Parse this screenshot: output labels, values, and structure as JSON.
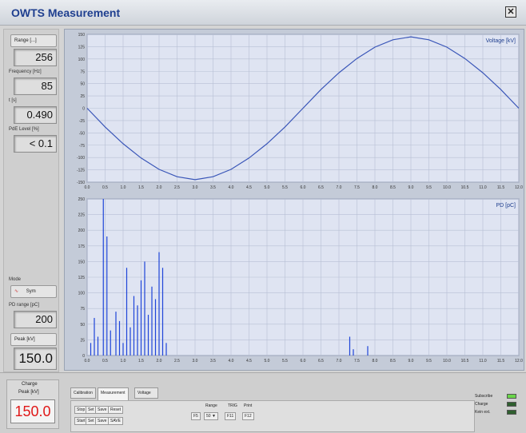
{
  "window": {
    "title": "OWTS Measurement",
    "close_label": "✕"
  },
  "left_panel": {
    "range_label": "Range [...]",
    "range_value": "256",
    "frequency_label": "Frequency [Hz]",
    "frequency_value": "85",
    "t_label": "t [s]",
    "t_value": "0.490",
    "pd_level_label": "PdE Level [%]",
    "pd_level_value": "< 0.1",
    "mode_label": "Mode",
    "mode_value": "Sym",
    "pd_range_label": "PD range [pC]",
    "pd_range_value": "200",
    "peak_label": "Peak [kV]",
    "peak_value": "150.0"
  },
  "voltage_chart": {
    "title": "Voltage [kV]",
    "y_ticks": [
      "150",
      "125",
      "100",
      "75",
      "50",
      "25",
      "0",
      "-25",
      "-50",
      "-75",
      "-100",
      "-125",
      "-150"
    ],
    "x_ticks": [
      "0.0",
      "0.5",
      "1.0",
      "1.5",
      "2.0",
      "2.5",
      "3.0",
      "3.5",
      "4.0",
      "4.5",
      "5.0",
      "5.5",
      "6.0",
      "6.5",
      "7.0",
      "7.5",
      "8.0",
      "8.5",
      "9.0",
      "9.5",
      "10.0",
      "10.5",
      "11.0",
      "11.5",
      "12.0"
    ]
  },
  "pd_chart": {
    "title": "PD [pC]",
    "y_ticks": [
      "250",
      "225",
      "200",
      "175",
      "150",
      "125",
      "100",
      "75",
      "50",
      "25",
      "0"
    ],
    "x_ticks": [
      "0.0",
      "0.5",
      "1.0",
      "1.5",
      "2.0",
      "2.5",
      "3.0",
      "3.5",
      "4.0",
      "4.5",
      "5.0",
      "5.5",
      "6.0",
      "6.5",
      "7.0",
      "7.5",
      "8.0",
      "8.5",
      "9.0",
      "9.5",
      "10.0",
      "10.5",
      "11.0",
      "11.5",
      "12.0"
    ]
  },
  "chart_data": [
    {
      "type": "line",
      "title": "Voltage [kV]",
      "xlim": [
        0,
        12
      ],
      "ylim": [
        -150,
        150
      ],
      "series": [
        {
          "name": "Voltage [kV]",
          "x": [
            0,
            0.5,
            1,
            1.5,
            2,
            2.5,
            3,
            3.5,
            4,
            4.5,
            5,
            5.5,
            6,
            6.5,
            7,
            7.5,
            8,
            8.5,
            9,
            9.5,
            10,
            10.5,
            11,
            11.5,
            12
          ],
          "y": [
            0,
            -38,
            -72,
            -101,
            -124,
            -139,
            -145,
            -139,
            -124,
            -101,
            -72,
            -38,
            0,
            38,
            72,
            101,
            124,
            139,
            145,
            139,
            124,
            101,
            72,
            38,
            0
          ]
        }
      ]
    },
    {
      "type": "bar",
      "title": "PD [pC]",
      "xlim": [
        0,
        12
      ],
      "ylim": [
        0,
        250
      ],
      "x": [
        0.1,
        0.2,
        0.3,
        0.45,
        0.55,
        0.65,
        0.8,
        0.9,
        1.0,
        1.1,
        1.2,
        1.3,
        1.4,
        1.5,
        1.6,
        1.7,
        1.8,
        1.9,
        2.0,
        2.1,
        2.2,
        7.3,
        7.4,
        7.8
      ],
      "values": [
        20,
        60,
        30,
        250,
        190,
        40,
        70,
        55,
        20,
        140,
        45,
        95,
        80,
        120,
        150,
        65,
        110,
        90,
        165,
        140,
        20,
        30,
        10,
        15
      ]
    }
  ],
  "bottom": {
    "charge_label": "Charge",
    "peak_label": "Peak [kV]",
    "peak_value": "150.0",
    "tabs": [
      "Calibration",
      "Measurement",
      "Voltage Withstand Diagnosis"
    ],
    "buttons_row1": [
      "Stop",
      "Set",
      "Save",
      "Reset"
    ],
    "buttons_row2": [
      "Start",
      "Set",
      "Save",
      "SAVE"
    ],
    "range_header": "Range",
    "range_buttons": [
      "F5",
      "50"
    ],
    "trig_header": "TRIG",
    "trig_buttons": [
      "F11"
    ],
    "print_header": "Print",
    "print_buttons": [
      "F12"
    ],
    "status_labels": [
      "Subscribe",
      "Charge",
      "Kein ext."
    ],
    "status_colors": [
      "#6ad64a",
      "#2f5f2f",
      "#2f5f2f"
    ]
  }
}
